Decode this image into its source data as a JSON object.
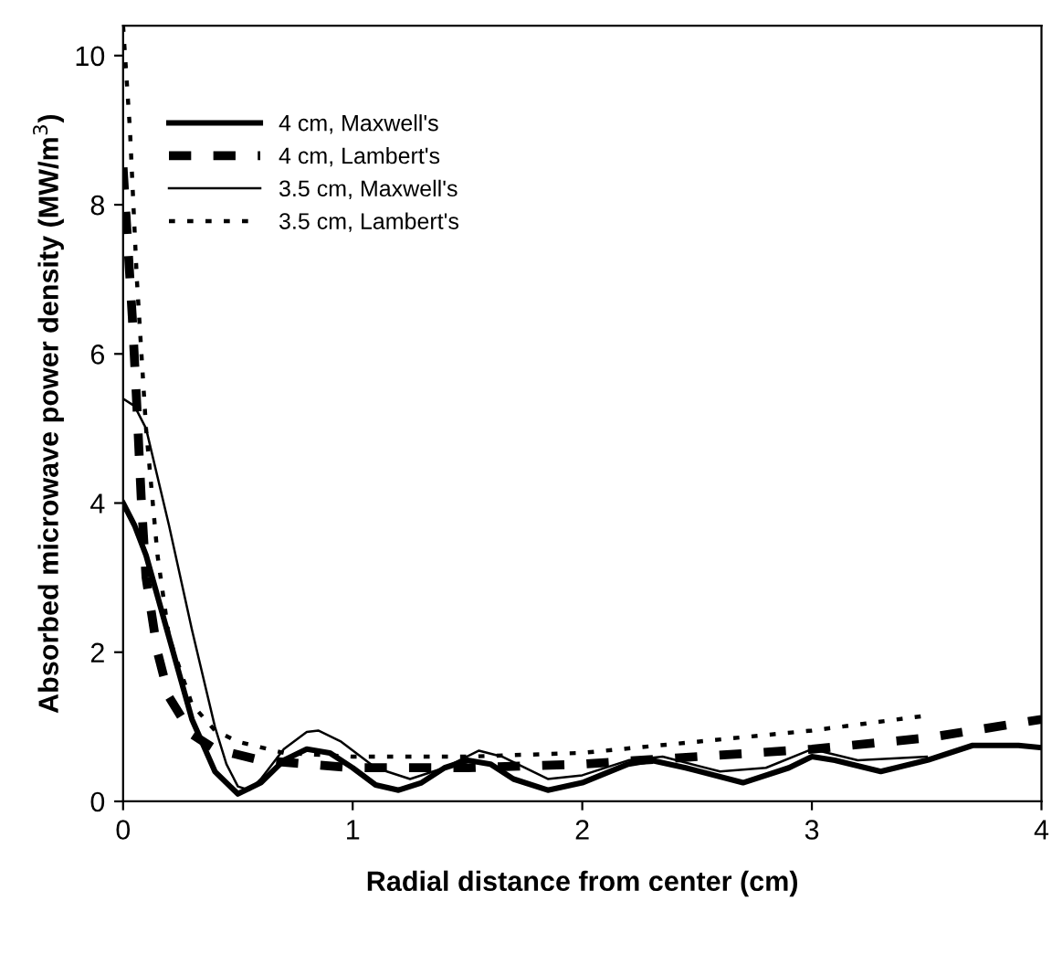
{
  "chart_data": {
    "type": "line",
    "xlabel": "Radial distance from center (cm)",
    "ylabel": "Absorbed microwave power density (MW/m$^{3}$)",
    "xlim": [
      0,
      4
    ],
    "xticks": [
      0,
      1,
      2,
      3,
      4
    ],
    "ylim": [
      0,
      10.4
    ],
    "yticks": [
      0,
      2,
      4,
      6,
      8,
      10
    ],
    "grid": false,
    "legend": "top left",
    "series": [
      {
        "name": "4 cm, Maxwell's",
        "color": "#000000",
        "line_style": "solid",
        "x": [
          0,
          0.05,
          0.1,
          0.2,
          0.3,
          0.4,
          0.5,
          0.6,
          0.7,
          0.8,
          0.9,
          1.0,
          1.1,
          1.2,
          1.3,
          1.4,
          1.5,
          1.6,
          1.7,
          1.85,
          2.0,
          2.2,
          2.3,
          2.45,
          2.7,
          2.9,
          3.0,
          3.1,
          3.3,
          3.5,
          3.7,
          3.9,
          4.0
        ],
        "values": [
          4.0,
          3.7,
          3.3,
          2.2,
          1.1,
          0.4,
          0.1,
          0.25,
          0.55,
          0.7,
          0.65,
          0.45,
          0.22,
          0.15,
          0.25,
          0.45,
          0.55,
          0.5,
          0.3,
          0.15,
          0.25,
          0.5,
          0.55,
          0.45,
          0.25,
          0.45,
          0.6,
          0.55,
          0.4,
          0.55,
          0.75,
          0.75,
          0.72
        ]
      },
      {
        "name": "4 cm, Lambert's",
        "color": "#000000",
        "line_style": "dashed",
        "x": [
          0,
          0.02,
          0.04,
          0.06,
          0.08,
          0.1,
          0.15,
          0.2,
          0.3,
          0.4,
          0.6,
          0.8,
          1.0,
          1.5,
          2.0,
          2.5,
          3.0,
          3.5,
          4.0
        ],
        "values": [
          8.5,
          7.5,
          6.5,
          5.3,
          4.0,
          3.0,
          2.0,
          1.4,
          0.9,
          0.7,
          0.55,
          0.5,
          0.45,
          0.45,
          0.5,
          0.6,
          0.7,
          0.85,
          1.1
        ]
      },
      {
        "name": "3.5 cm, Maxwell's",
        "color": "#000000",
        "line_style": "solid",
        "x": [
          0,
          0.05,
          0.1,
          0.2,
          0.3,
          0.4,
          0.45,
          0.5,
          0.55,
          0.6,
          0.7,
          0.8,
          0.85,
          0.95,
          1.1,
          1.25,
          1.4,
          1.55,
          1.65,
          1.85,
          2.0,
          2.2,
          2.35,
          2.6,
          2.8,
          3.0,
          3.2,
          3.5
        ],
        "values": [
          5.4,
          5.3,
          5.0,
          3.7,
          2.3,
          1.0,
          0.5,
          0.2,
          0.15,
          0.3,
          0.7,
          0.93,
          0.95,
          0.8,
          0.45,
          0.3,
          0.45,
          0.68,
          0.6,
          0.3,
          0.35,
          0.55,
          0.6,
          0.4,
          0.45,
          0.7,
          0.55,
          0.6
        ]
      },
      {
        "name": "3.5 cm, Lambert's",
        "color": "#000000",
        "line_style": "dotted",
        "x": [
          0,
          0.03,
          0.06,
          0.1,
          0.15,
          0.2,
          0.3,
          0.4,
          0.5,
          0.7,
          1.0,
          1.5,
          2.0,
          2.5,
          3.0,
          3.5
        ],
        "values": [
          10.4,
          9,
          7,
          5.0,
          3.3,
          2.2,
          1.3,
          0.95,
          0.8,
          0.65,
          0.6,
          0.6,
          0.65,
          0.8,
          0.95,
          1.15
        ]
      }
    ]
  }
}
